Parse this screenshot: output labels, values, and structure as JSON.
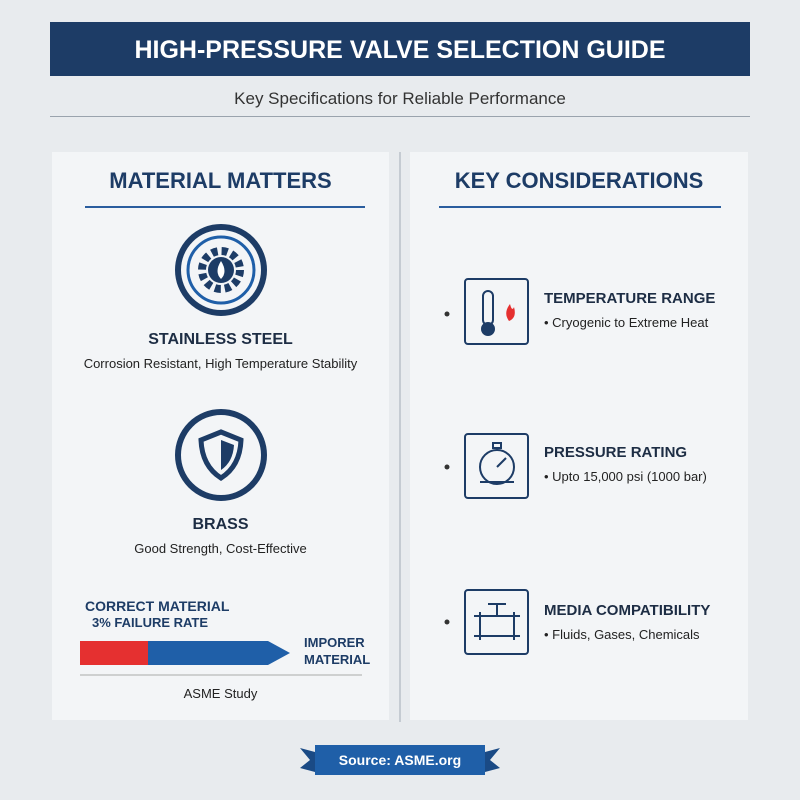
{
  "header": {
    "title": "HIGH-PRESSURE VALVE SELECTION GUIDE",
    "subtitle": "Key Specifications for Reliable Performance"
  },
  "materials": {
    "title": "MATERIAL MATTERS",
    "items": [
      {
        "name": "STAINLESS STEEL",
        "description": "Corrosion Resistant, High Temperature Stability"
      },
      {
        "name": "BRASS",
        "description": "Good Strength, Cost-Effective"
      }
    ],
    "comparison": {
      "correct_label": "CORRECT MATERIAL",
      "correct_rate": "3% FAILURE RATE",
      "improper_label": [
        "IMPORER",
        "MATERIAL"
      ],
      "caption": "ASME Study"
    }
  },
  "considerations": {
    "title": "KEY CONSIDERATIONS",
    "items": [
      {
        "title": "TEMPERATURE RANGE",
        "detail": "Cryogenic to Extreme Heat"
      },
      {
        "title": "PRESSURE RATING",
        "detail": "Upto 15,000 psi (1000 bar)"
      },
      {
        "title": "MEDIA COMPATIBILITY",
        "detail": "Fluids, Gases, Chemicals"
      }
    ]
  },
  "footer": {
    "source": "Source: ASME.org"
  }
}
